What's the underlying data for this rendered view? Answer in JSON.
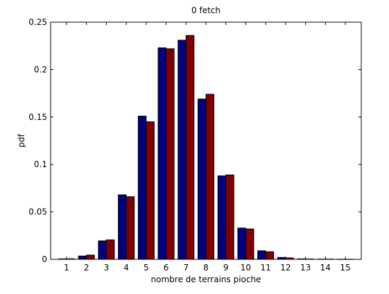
{
  "chart_data": {
    "type": "bar",
    "title": "0 fetch",
    "xlabel": "nombre de terrains pioche",
    "ylabel": "pdf",
    "categories": [
      "1",
      "2",
      "3",
      "4",
      "5",
      "6",
      "7",
      "8",
      "9",
      "10",
      "11",
      "12",
      "13",
      "14",
      "15"
    ],
    "ylim": [
      0,
      0.25
    ],
    "yticks": [
      "0",
      "0.05",
      "0.1",
      "0.15",
      "0.2",
      "0.25"
    ],
    "grid": false,
    "legend": "none",
    "series": [
      {
        "color": "#000080",
        "values": [
          0.0005,
          0.0035,
          0.0195,
          0.068,
          0.151,
          0.223,
          0.231,
          0.169,
          0.088,
          0.033,
          0.009,
          0.002,
          0.0005,
          0.0003,
          0.0001
        ]
      },
      {
        "color": "#800000",
        "values": [
          0.0006,
          0.0045,
          0.0205,
          0.066,
          0.145,
          0.222,
          0.236,
          0.174,
          0.089,
          0.032,
          0.008,
          0.0015,
          0.0004,
          0.0003,
          0.0001
        ]
      }
    ]
  }
}
